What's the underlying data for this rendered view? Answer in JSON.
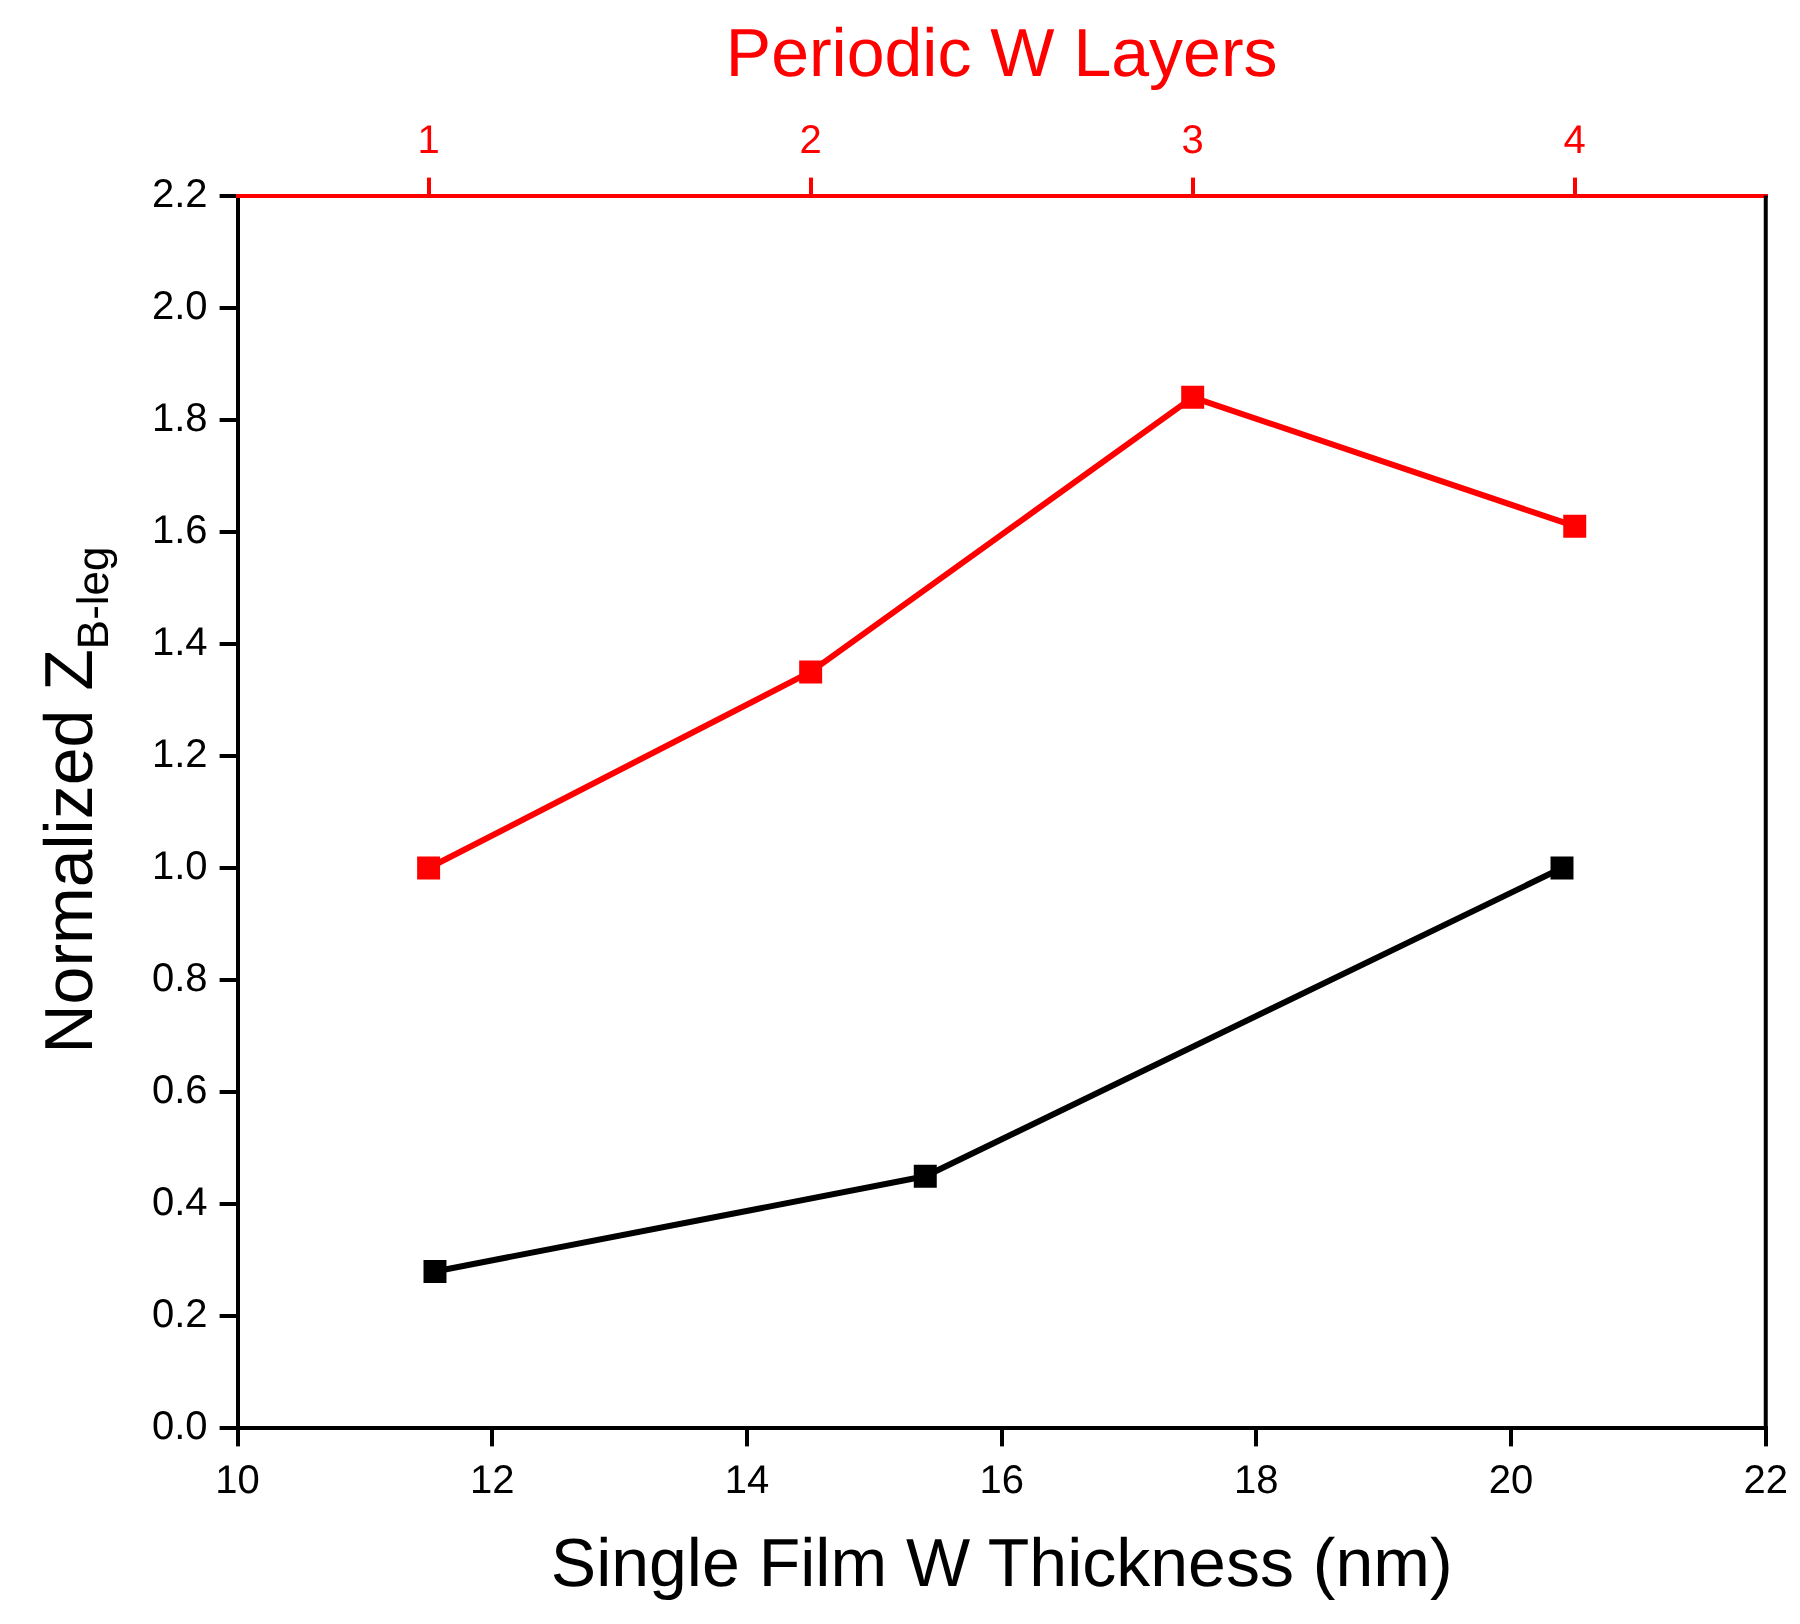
{
  "chart_data": {
    "type": "line",
    "xlabel": "Single Film W Thickness (nm)",
    "ylabel": "Normalized Z$_{B-leg}$",
    "x2label": "Periodic W Layers",
    "xlim": [
      10,
      22
    ],
    "xticks": [
      10,
      12,
      14,
      16,
      18,
      20,
      22
    ],
    "x2lim": [
      0.5,
      4.5
    ],
    "x2ticks": [
      1,
      2,
      3,
      4
    ],
    "ylim": [
      0,
      2.2
    ],
    "yticks": [
      {
        "value": 0,
        "label": "0.0"
      },
      {
        "value": 0.2,
        "label": "0.2"
      },
      {
        "value": 0.4,
        "label": "0.4"
      },
      {
        "value": 0.6,
        "label": "0.6"
      },
      {
        "value": 0.8,
        "label": "0.8"
      },
      {
        "value": 1,
        "label": "1.0"
      },
      {
        "value": 1.2,
        "label": "1.2"
      },
      {
        "value": 1.4,
        "label": "1.4"
      },
      {
        "value": 1.6,
        "label": "1.6"
      },
      {
        "value": 1.8,
        "label": "1.8"
      },
      {
        "value": 2,
        "label": "2.0"
      },
      {
        "value": 2.2,
        "label": "2.2"
      }
    ],
    "series": [
      {
        "color": "#ff0000",
        "axis": "x2",
        "x": [
          1,
          2,
          3,
          4
        ],
        "values": [
          1.0,
          1.35,
          1.84,
          1.61
        ]
      },
      {
        "color": "#000000",
        "x": [
          11.55,
          15.4,
          20.4
        ],
        "values": [
          0.28,
          0.45,
          1.0
        ]
      }
    ],
    "marker": "square",
    "line_style": "solid",
    "grid": false,
    "legend": false
  }
}
